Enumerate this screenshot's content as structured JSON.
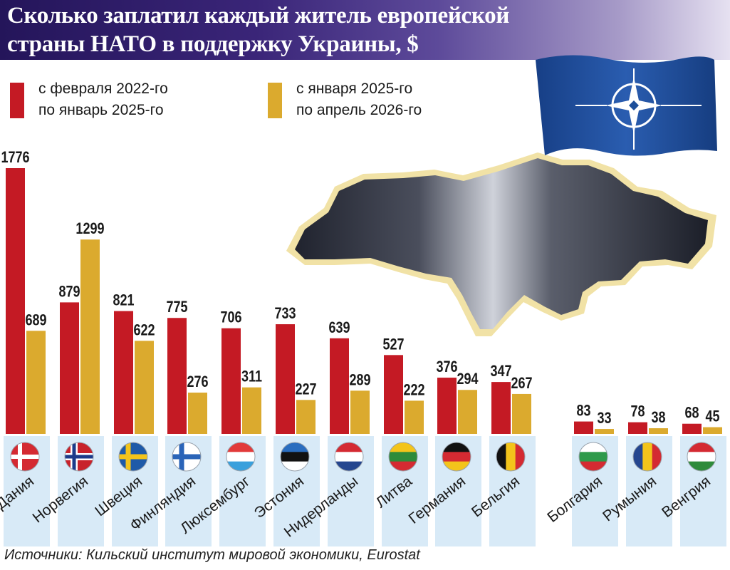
{
  "title": "Сколько заплатил каждый житель европейской страны НАТО в поддержку Украины, $",
  "legend": [
    {
      "line1": "с февраля 2022-го",
      "line2": "по январь 2025-го",
      "color": "#c41a24"
    },
    {
      "line1": "с января 2025-го",
      "line2": "по апрель 2026-го",
      "color": "#dbaa2e"
    }
  ],
  "source": "Источники: Кильский институт мировой экономики, Eurostat",
  "colors": {
    "series1": "#c41a24",
    "series2": "#dbaa2e",
    "stripe": "#d8eaf7",
    "nato_blue": "#1d4f9a"
  },
  "chart_data": {
    "type": "bar",
    "categories": [
      "Дания",
      "Норвегия",
      "Швеция",
      "Финляндия",
      "Люксембург",
      "Эстония",
      "Нидерланды",
      "Литва",
      "Германия",
      "Бельгия",
      "Болгария",
      "Румыния",
      "Венгрия"
    ],
    "series": [
      {
        "values": [
          1776,
          879,
          821,
          775,
          706,
          733,
          639,
          527,
          376,
          347,
          83,
          78,
          68
        ]
      },
      {
        "values": [
          689,
          1299,
          622,
          276,
          311,
          227,
          289,
          222,
          294,
          267,
          33,
          38,
          45
        ]
      }
    ],
    "flags": [
      "denmark-flag-icon",
      "norway-flag-icon",
      "sweden-flag-icon",
      "finland-flag-icon",
      "luxembourg-flag-icon",
      "estonia-flag-icon",
      "netherlands-flag-icon",
      "lithuania-flag-icon",
      "germany-flag-icon",
      "belgium-flag-icon",
      "bulgaria-flag-icon",
      "romania-flag-icon",
      "hungary-flag-icon"
    ],
    "ylim": [
      0,
      1776
    ]
  }
}
